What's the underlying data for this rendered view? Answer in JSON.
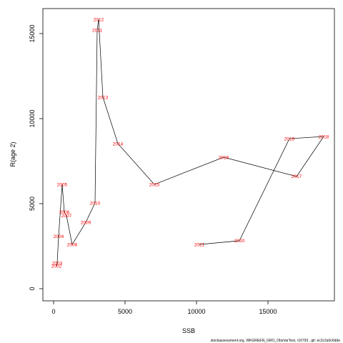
{
  "chart_data": {
    "type": "line",
    "xlabel": "SSB",
    "ylabel": "R(age 2)",
    "footer": "stockassessment.org, WKGREEN_GRO_ObsVarTest, r16793 , git: ec2c2a0c6dde",
    "labels": [
      "2002",
      "2003",
      "2004",
      "2005",
      "2006",
      "2007",
      "2008",
      "2009",
      "2010",
      "2011",
      "2012",
      "2013",
      "2014",
      "2015",
      "2016",
      "2017",
      "2018",
      "2019",
      "2020",
      "2021"
    ],
    "x": [
      200,
      250,
      350,
      600,
      750,
      900,
      1300,
      2250,
      2900,
      3050,
      3150,
      3450,
      4500,
      7050,
      11900,
      17000,
      18900,
      16500,
      13000,
      10200
    ],
    "y": [
      1345,
      1510,
      3070,
      6130,
      4500,
      4290,
      2600,
      3900,
      5040,
      15210,
      15840,
      11260,
      8530,
      6130,
      7730,
      6600,
      8950,
      8820,
      2820,
      2600
    ],
    "line_color": "#000000",
    "label_color": "#ff0000",
    "xlim": [
      -750,
      19650
    ],
    "ylim": [
      -714,
      16470
    ],
    "xticks": [
      0,
      5000,
      10000,
      15000
    ],
    "yticks": [
      0,
      5000,
      10000,
      15000
    ]
  }
}
